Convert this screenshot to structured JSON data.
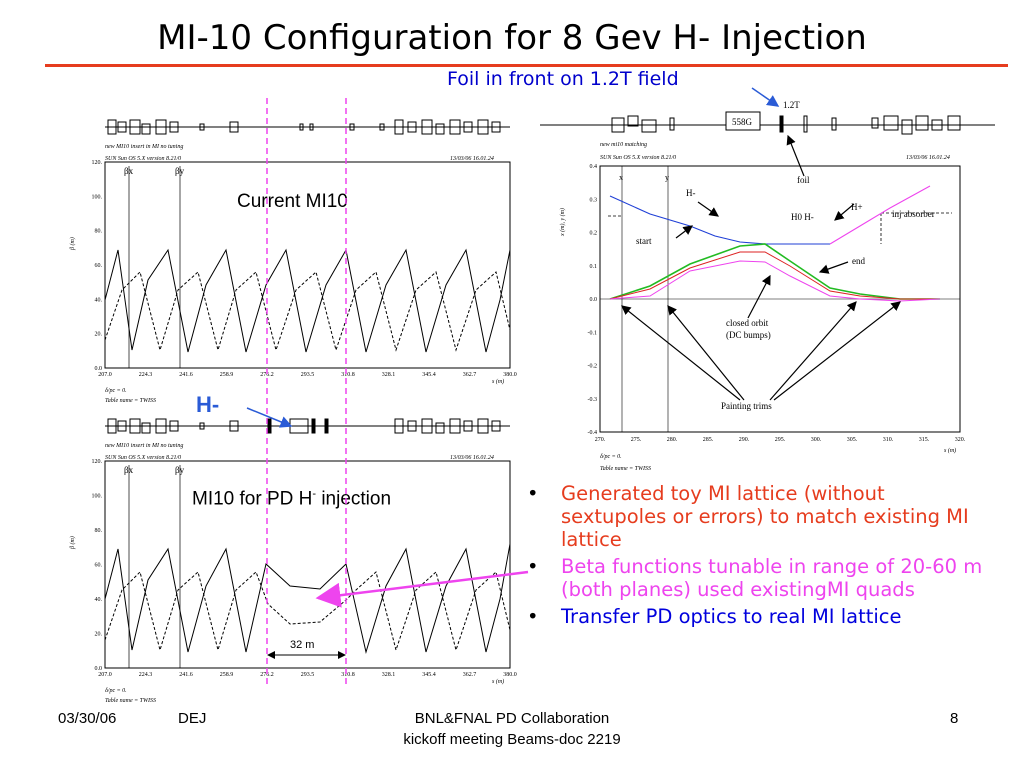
{
  "slide": {
    "title": "MI-10 Configuration for 8 Gev H- Injection",
    "accent_color": "#e63c1e"
  },
  "annotations": {
    "foil_front": "Foil in front on 1.2T field",
    "current_mi10": "Current MI10",
    "pd_injection_main": "MI10 for PD H",
    "pd_injection_sup": "-",
    "pd_injection_tail": " injection",
    "h_minus": "H-",
    "span_32m": "32 m"
  },
  "beta_plot_top": {
    "header_left": "new MI10 insert in MI no tuning",
    "version": "SUN Sun OS 5.X version 8.21/0",
    "date": "13/03/06  16.01.24",
    "ylabel": "β (m)",
    "xlabel": "s (m)",
    "yticks": [
      "0.0",
      "20.",
      "40.",
      "60.",
      "80.",
      "100.",
      "120."
    ],
    "xticks": [
      "207.0",
      "224.3",
      "241.6",
      "258.9",
      "276.2",
      "293.5",
      "310.8",
      "328.1",
      "345.4",
      "362.7",
      "380.0"
    ],
    "legend_x": "βx",
    "legend_y": "βy",
    "note1": "δ/pc = 0.",
    "note2": "Table name = TWISS"
  },
  "beta_plot_bottom": {
    "header_left": "new MI10 insert in MI no tuning",
    "version": "SUN Sun OS 5.X version 8.21/0",
    "date": "13/03/06  16.01.24",
    "ylabel": "β (m)",
    "xlabel": "s (m)",
    "yticks": [
      "0.0",
      "20.",
      "40.",
      "60.",
      "80.",
      "100.",
      "120."
    ],
    "xticks": [
      "207.0",
      "224.3",
      "241.6",
      "258.9",
      "276.2",
      "293.5",
      "310.8",
      "328.1",
      "345.4",
      "362.7",
      "380.0"
    ],
    "legend_x": "βx",
    "legend_y": "βy",
    "note1": "δ/pc = 0.",
    "note2": "Table name = TWISS"
  },
  "orbit_plot": {
    "header_left": "new mi10 matching",
    "version": "SUN Sun OS 5.X version 8.21/0",
    "date": "13/03/06  16.01.24",
    "ylabel": "x (m), y (m)",
    "xlabel": "s (m)",
    "yticks": [
      "-0.4",
      "-0.3",
      "-0.2",
      "-0.1",
      "0.0",
      "0.1",
      "0.2",
      "0.3",
      "0.4"
    ],
    "xticks": [
      "270.",
      "275.",
      "280.",
      "285.",
      "290.",
      "295.",
      "300.",
      "305.",
      "310.",
      "315.",
      "320."
    ],
    "legend_x": "x",
    "legend_y": "y",
    "magnet_558g": "558G",
    "field_label": "1.2T",
    "labels": {
      "foil": "foil",
      "h_minus": "H-",
      "h_plus": "H+",
      "h0h": "H0 H-",
      "inj_absorber": "inj absorber",
      "start": "start",
      "end": "end",
      "closed_orbit_1": "closed orbit",
      "closed_orbit_2": "(DC bumps)",
      "painting_trims": "Painting trims"
    },
    "note1": "δ/pc = 0.",
    "note2": "Table name = TWISS"
  },
  "bullets": [
    {
      "text": "Generated toy MI lattice (without sextupoles or errors) to match existing MI lattice",
      "color": "#e63c1e"
    },
    {
      "text": "Beta functions tunable in range of 20-60 m (both planes) used existingMI quads",
      "color": "#ee44ee"
    },
    {
      "text": "Transfer PD optics to real MI lattice",
      "color": "#0000dd"
    }
  ],
  "footer": {
    "date": "03/30/06",
    "author": "DEJ",
    "center_line1": "BNL&FNAL PD Collaboration",
    "center_line2": "kickoff meeting Beams-doc 2219",
    "page": "8"
  }
}
